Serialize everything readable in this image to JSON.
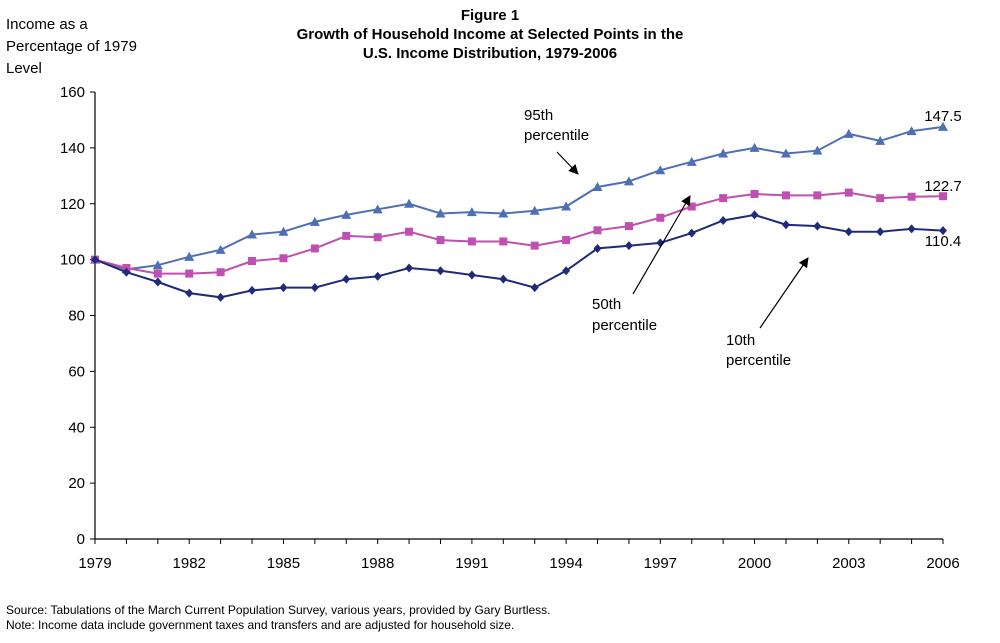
{
  "figure": {
    "title_lines": [
      "Figure 1",
      "Growth of Household Income at Selected Points in the",
      "U.S. Income Distribution, 1979-2006"
    ],
    "ylabel_lines": [
      "Income as a",
      "Percentage of 1979",
      "Level"
    ],
    "source": "Source: Tabulations of the March Current  Population Survey, various years, provided by Gary Burtless.",
    "note": "Note: Income data include government taxes and transfers and are adjusted for household size."
  },
  "chart_data": {
    "type": "line",
    "title": "Growth of Household Income at Selected Points in the U.S. Income Distribution, 1979-2006",
    "ylabel": "Income as a Percentage of 1979 Level",
    "xlabel": "",
    "x": [
      1979,
      1980,
      1981,
      1982,
      1983,
      1984,
      1985,
      1986,
      1987,
      1988,
      1989,
      1990,
      1991,
      1992,
      1993,
      1994,
      1995,
      1996,
      1997,
      1998,
      1999,
      2000,
      2001,
      2002,
      2003,
      2004,
      2005,
      2006
    ],
    "xticks": [
      1979,
      1982,
      1985,
      1988,
      1991,
      1994,
      1997,
      2000,
      2003,
      2006
    ],
    "ylim": [
      0,
      160
    ],
    "yticks": [
      0,
      20,
      40,
      60,
      80,
      100,
      120,
      140,
      160
    ],
    "grid": false,
    "series": [
      {
        "name": "95th percentile",
        "color": "#4f6fb5",
        "marker": "triangle",
        "values": [
          100,
          96.5,
          98,
          101,
          103.5,
          109,
          110,
          113.5,
          116,
          118,
          120,
          116.5,
          117,
          116.5,
          117.5,
          119,
          126,
          128,
          132,
          135,
          138,
          140,
          138,
          139,
          145,
          142.5,
          146,
          147.5
        ]
      },
      {
        "name": "50th percentile",
        "color": "#bf4fb0",
        "marker": "square",
        "values": [
          100,
          97,
          95,
          95,
          95.5,
          99.5,
          100.5,
          104,
          108.5,
          108,
          110,
          107,
          106.5,
          106.5,
          105,
          107,
          110.5,
          112,
          115,
          119,
          122,
          123.5,
          123,
          123,
          124,
          122,
          122.5,
          122.7
        ]
      },
      {
        "name": "10th percentile",
        "color": "#1f2a7a",
        "marker": "diamond",
        "values": [
          100,
          95.5,
          92,
          88,
          86.5,
          89,
          90,
          90,
          93,
          94,
          97,
          96,
          94.5,
          93,
          90,
          96,
          104,
          105,
          106,
          109.5,
          114,
          116,
          112.5,
          112,
          110,
          110,
          111,
          110.4
        ]
      }
    ],
    "annotations": {
      "end_labels": [
        "147.5",
        "122.7",
        "110.4"
      ],
      "p95": [
        "95th",
        "percentile"
      ],
      "p50": [
        "50th",
        "percentile"
      ],
      "p10": [
        "10th",
        "percentile"
      ]
    }
  }
}
